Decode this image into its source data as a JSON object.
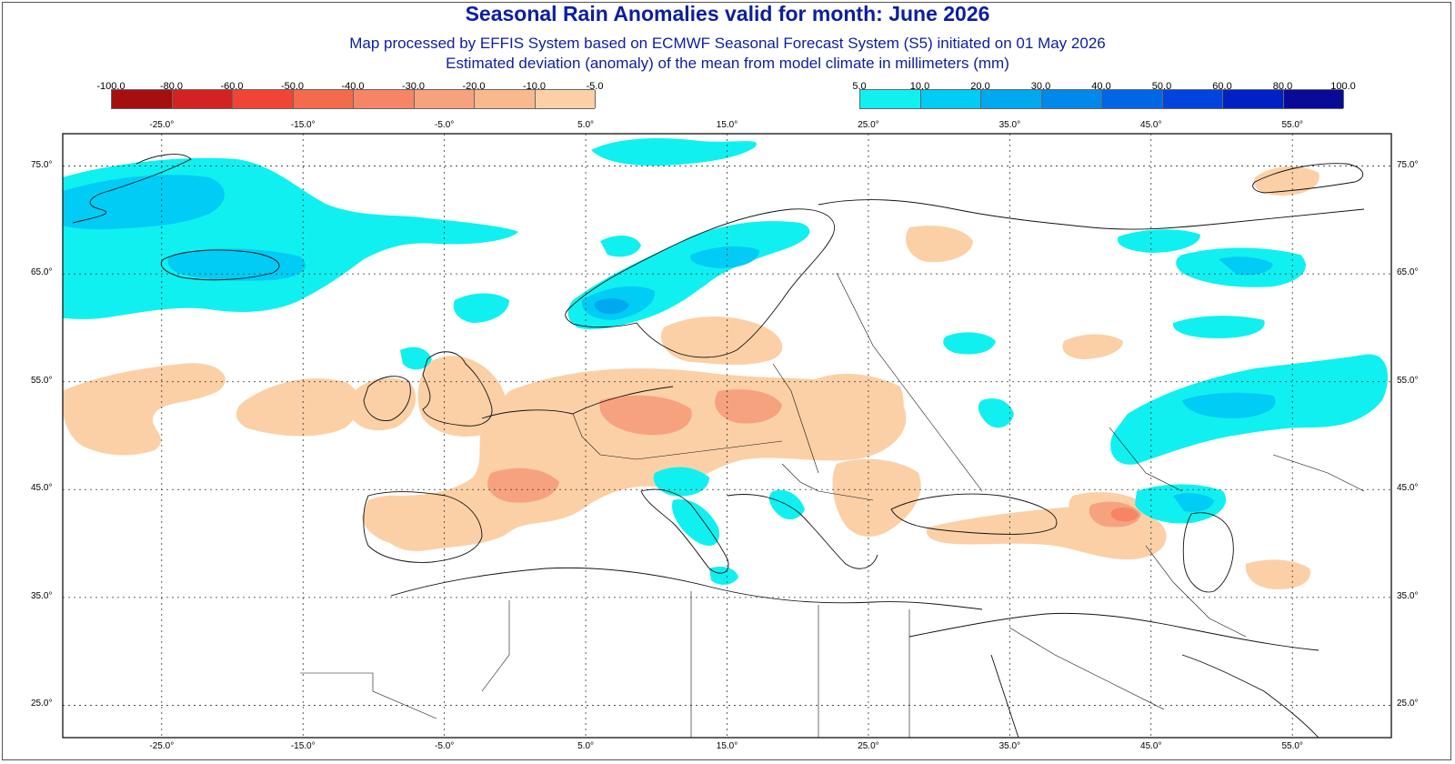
{
  "header": {
    "title": "Seasonal Rain Anomalies valid for month: June 2026",
    "subtitle_line1": "Map processed by EFFIS System based on ECMWF Seasonal Forecast System (S5) initiated on 01 May 2026",
    "subtitle_line2": "Estimated deviation (anomaly) of the mean from model climate in millimeters (mm)"
  },
  "legend_negative": {
    "labels": [
      "-100.0",
      "-80.0",
      "-60.0",
      "-50.0",
      "-40.0",
      "-30.0",
      "-20.0",
      "-10.0",
      "-5.0"
    ],
    "colors": [
      "#a50f0f",
      "#d42222",
      "#f04535",
      "#f36a4d",
      "#f58566",
      "#f7a27e",
      "#f9b98f",
      "#fbd0a6"
    ]
  },
  "legend_positive": {
    "labels": [
      "5.0",
      "10.0",
      "20.0",
      "30.0",
      "40.0",
      "50.0",
      "60.0",
      "80.0",
      "100.0"
    ],
    "colors": [
      "#10f0f0",
      "#00ccf5",
      "#00a8f0",
      "#0088ea",
      "#0066e6",
      "#0044dd",
      "#0022c4",
      "#0a0a99"
    ]
  },
  "longitude_labels_top": [
    "-25.0°",
    "-15.0°",
    "-5.0°",
    "5.0°",
    "15.0°",
    "25.0°",
    "35.0°",
    "45.0°",
    "55.0°"
  ],
  "longitude_labels_bottom": [
    "-25.0°",
    "-15.0°",
    "-5.0°",
    "5.0°",
    "15.0°",
    "25.0°",
    "35.0°",
    "45.0°",
    "55.0°"
  ],
  "latitude_labels": [
    "75.0°",
    "65.0°",
    "55.0°",
    "45.0°",
    "35.0°",
    "25.0°"
  ],
  "map": {
    "graticule_lons": [
      -25,
      -15,
      -5,
      5,
      15,
      25,
      35,
      45,
      55
    ],
    "graticule_lats": [
      75,
      65,
      55,
      45,
      35,
      25
    ],
    "dry_color": "#fbd0a6",
    "dry_mid_color": "#f7a27e",
    "dry_strong_color": "#f58566",
    "wet_color": "#10f0f0",
    "wet_mid_color": "#00ccf5",
    "wet_strong_color": "#00a8f0",
    "coast_color": "#111111"
  }
}
